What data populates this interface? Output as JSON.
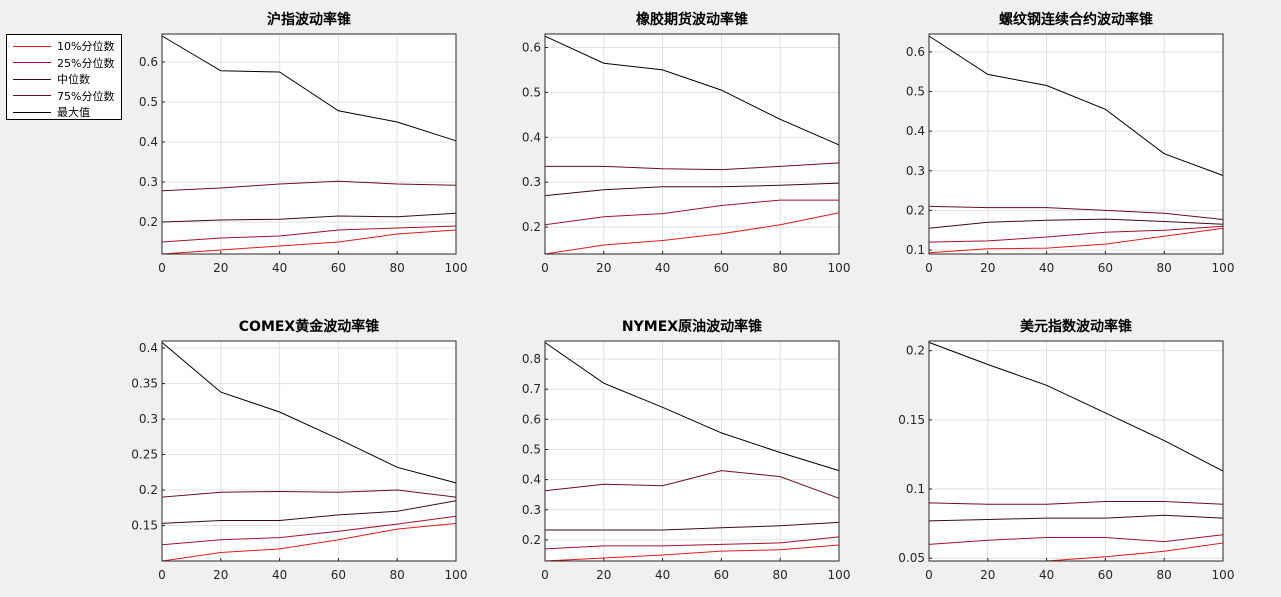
{
  "legend": [
    {
      "label": "10%分位数",
      "color": "#e31a1c"
    },
    {
      "label": "25%分位数",
      "color": "#a50f2d"
    },
    {
      "label": "中位数",
      "color": "#3d0a14"
    },
    {
      "label": "75%分位数",
      "color": "#6b0f1e"
    },
    {
      "label": "最大值",
      "color": "#000000"
    }
  ],
  "chart_data": [
    {
      "type": "line",
      "title": "沪指波动率锥",
      "x": [
        0,
        20,
        40,
        60,
        80,
        100
      ],
      "xlim": [
        0,
        100
      ],
      "xticks": [
        0,
        20,
        40,
        60,
        80,
        100
      ],
      "ylim": [
        0.12,
        0.67
      ],
      "yticks": [
        0.2,
        0.3,
        0.4,
        0.5,
        0.6
      ],
      "ytick_labels": [
        "0.2",
        "0.3",
        "0.4",
        "0.5",
        "0.6"
      ],
      "grid": true,
      "series": [
        {
          "name": "10%分位数",
          "values": [
            0.12,
            0.13,
            0.14,
            0.15,
            0.17,
            0.18
          ]
        },
        {
          "name": "25%分位数",
          "values": [
            0.15,
            0.16,
            0.165,
            0.18,
            0.185,
            0.19
          ]
        },
        {
          "name": "中位数",
          "values": [
            0.2,
            0.205,
            0.207,
            0.215,
            0.213,
            0.222
          ]
        },
        {
          "name": "75%分位数",
          "values": [
            0.278,
            0.285,
            0.295,
            0.302,
            0.295,
            0.292
          ]
        },
        {
          "name": "最大值",
          "values": [
            0.665,
            0.578,
            0.575,
            0.478,
            0.45,
            0.403
          ]
        }
      ]
    },
    {
      "type": "line",
      "title": "橡胶期货波动率锥",
      "x": [
        0,
        20,
        40,
        60,
        80,
        100
      ],
      "xlim": [
        0,
        100
      ],
      "xticks": [
        0,
        20,
        40,
        60,
        80,
        100
      ],
      "ylim": [
        0.14,
        0.63
      ],
      "yticks": [
        0.2,
        0.3,
        0.4,
        0.5,
        0.6
      ],
      "ytick_labels": [
        "0.2",
        "0.3",
        "0.4",
        "0.5",
        "0.6"
      ],
      "grid": true,
      "series": [
        {
          "name": "10%分位数",
          "values": [
            0.14,
            0.16,
            0.17,
            0.185,
            0.205,
            0.232
          ]
        },
        {
          "name": "25%分位数",
          "values": [
            0.205,
            0.223,
            0.23,
            0.248,
            0.26,
            0.26
          ]
        },
        {
          "name": "中位数",
          "values": [
            0.27,
            0.283,
            0.29,
            0.29,
            0.293,
            0.298
          ]
        },
        {
          "name": "75%分位数",
          "values": [
            0.335,
            0.335,
            0.33,
            0.328,
            0.335,
            0.343
          ]
        },
        {
          "name": "最大值",
          "values": [
            0.625,
            0.565,
            0.55,
            0.505,
            0.44,
            0.383
          ]
        }
      ]
    },
    {
      "type": "line",
      "title": "螺纹钢连续合约波动率锥",
      "x": [
        0,
        20,
        40,
        60,
        80,
        100
      ],
      "xlim": [
        0,
        100
      ],
      "xticks": [
        0,
        20,
        40,
        60,
        80,
        100
      ],
      "ylim": [
        0.09,
        0.645
      ],
      "yticks": [
        0.1,
        0.2,
        0.3,
        0.4,
        0.5,
        0.6
      ],
      "ytick_labels": [
        "0.1",
        "0.2",
        "0.3",
        "0.4",
        "0.5",
        "0.6"
      ],
      "grid": true,
      "series": [
        {
          "name": "10%分位数",
          "values": [
            0.093,
            0.103,
            0.105,
            0.115,
            0.135,
            0.155
          ]
        },
        {
          "name": "25%分位数",
          "values": [
            0.12,
            0.123,
            0.133,
            0.145,
            0.15,
            0.16
          ]
        },
        {
          "name": "中位数",
          "values": [
            0.155,
            0.17,
            0.175,
            0.178,
            0.172,
            0.165
          ]
        },
        {
          "name": "75%分位数",
          "values": [
            0.21,
            0.207,
            0.207,
            0.2,
            0.193,
            0.177
          ]
        },
        {
          "name": "最大值",
          "values": [
            0.64,
            0.543,
            0.515,
            0.455,
            0.343,
            0.288
          ]
        }
      ]
    },
    {
      "type": "line",
      "title": "COMEX黄金波动率锥",
      "x": [
        0,
        20,
        40,
        60,
        80,
        100
      ],
      "xlim": [
        0,
        100
      ],
      "xticks": [
        0,
        20,
        40,
        60,
        80,
        100
      ],
      "ylim": [
        0.1,
        0.41
      ],
      "yticks": [
        0.15,
        0.2,
        0.25,
        0.3,
        0.35,
        0.4
      ],
      "ytick_labels": [
        "0.15",
        "0.2",
        "0.25",
        "0.3",
        "0.35",
        "0.4"
      ],
      "grid": true,
      "series": [
        {
          "name": "10%分位数",
          "values": [
            0.1,
            0.112,
            0.117,
            0.13,
            0.145,
            0.153
          ]
        },
        {
          "name": "25%分位数",
          "values": [
            0.123,
            0.13,
            0.133,
            0.142,
            0.152,
            0.163
          ]
        },
        {
          "name": "中位数",
          "values": [
            0.153,
            0.157,
            0.157,
            0.165,
            0.17,
            0.185
          ]
        },
        {
          "name": "75%分位数",
          "values": [
            0.19,
            0.197,
            0.198,
            0.197,
            0.2,
            0.19
          ]
        },
        {
          "name": "最大值",
          "values": [
            0.408,
            0.338,
            0.31,
            0.272,
            0.232,
            0.21
          ]
        }
      ]
    },
    {
      "type": "line",
      "title": "NYMEX原油波动率锥",
      "x": [
        0,
        20,
        40,
        60,
        80,
        100
      ],
      "xlim": [
        0,
        100
      ],
      "xticks": [
        0,
        20,
        40,
        60,
        80,
        100
      ],
      "ylim": [
        0.13,
        0.86
      ],
      "yticks": [
        0.2,
        0.3,
        0.4,
        0.5,
        0.6,
        0.7,
        0.8
      ],
      "ytick_labels": [
        "0.2",
        "0.3",
        "0.4",
        "0.5",
        "0.6",
        "0.7",
        "0.8"
      ],
      "grid": true,
      "series": [
        {
          "name": "10%分位数",
          "values": [
            0.13,
            0.14,
            0.15,
            0.163,
            0.167,
            0.183
          ]
        },
        {
          "name": "25%分位数",
          "values": [
            0.17,
            0.18,
            0.18,
            0.185,
            0.19,
            0.21
          ]
        },
        {
          "name": "中位数",
          "values": [
            0.233,
            0.233,
            0.233,
            0.24,
            0.247,
            0.258
          ]
        },
        {
          "name": "75%分位数",
          "values": [
            0.363,
            0.385,
            0.38,
            0.43,
            0.41,
            0.338
          ]
        },
        {
          "name": "最大值",
          "values": [
            0.855,
            0.72,
            0.64,
            0.555,
            0.49,
            0.43
          ]
        }
      ]
    },
    {
      "type": "line",
      "title": "美元指数波动率锥",
      "x": [
        0,
        20,
        40,
        60,
        80,
        100
      ],
      "xlim": [
        0,
        100
      ],
      "xticks": [
        0,
        20,
        40,
        60,
        80,
        100
      ],
      "ylim": [
        0.048,
        0.207
      ],
      "yticks": [
        0.05,
        0.1,
        0.15,
        0.2
      ],
      "ytick_labels": [
        "0.05",
        "0.1",
        "0.15",
        "0.2"
      ],
      "grid": true,
      "series": [
        {
          "name": "10%分位数",
          "values": [
            0.048,
            0.048,
            0.048,
            0.051,
            0.055,
            0.061
          ]
        },
        {
          "name": "25%分位数",
          "values": [
            0.06,
            0.063,
            0.065,
            0.065,
            0.062,
            0.067
          ]
        },
        {
          "name": "中位数",
          "values": [
            0.077,
            0.078,
            0.079,
            0.079,
            0.081,
            0.079
          ]
        },
        {
          "name": "75%分位数",
          "values": [
            0.09,
            0.089,
            0.089,
            0.091,
            0.091,
            0.089
          ]
        },
        {
          "name": "最大值",
          "values": [
            0.206,
            0.19,
            0.175,
            0.155,
            0.135,
            0.113
          ]
        }
      ]
    }
  ]
}
